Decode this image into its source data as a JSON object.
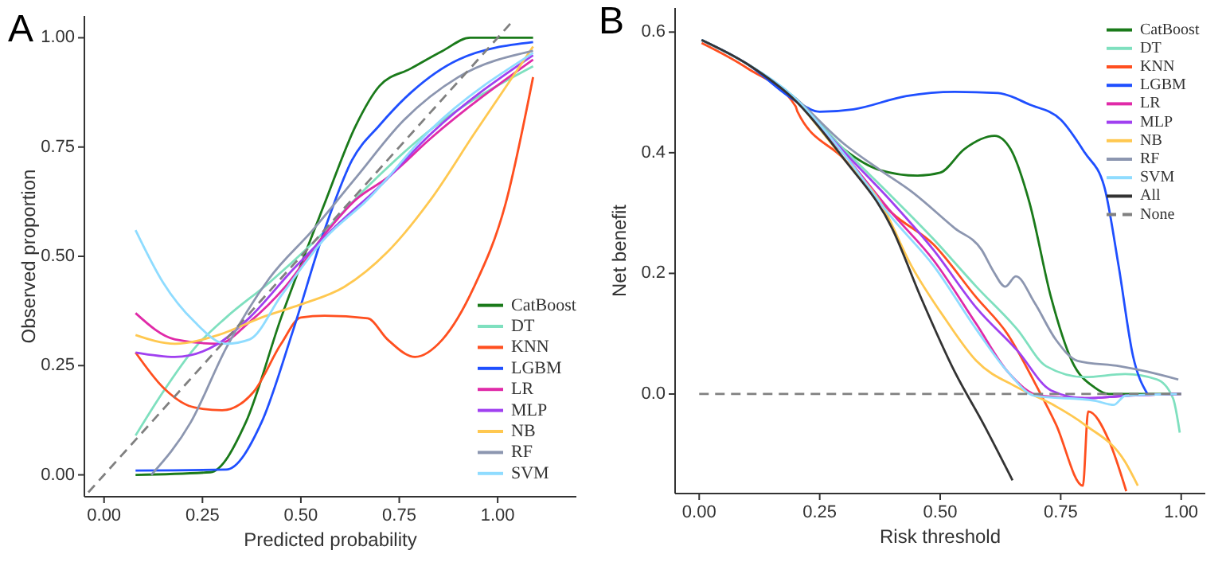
{
  "chart_data": [
    {
      "type": "line",
      "title": "A",
      "xlabel": "Predicted probability",
      "ylabel": "Observed proportion",
      "xlim": [
        -0.05,
        1.2
      ],
      "ylim": [
        -0.05,
        1.05
      ],
      "xticks": [
        {
          "value": 0,
          "label": "0.00"
        },
        {
          "value": 0.25,
          "label": "0.25"
        },
        {
          "value": 0.5,
          "label": "0.50"
        },
        {
          "value": 0.75,
          "label": "0.75"
        },
        {
          "value": 1,
          "label": "1.00"
        }
      ],
      "yticks": [
        {
          "value": 0,
          "label": "0.00"
        },
        {
          "value": 0.25,
          "label": "0.25"
        },
        {
          "value": 0.5,
          "label": "0.50"
        },
        {
          "value": 0.75,
          "label": "0.75"
        },
        {
          "value": 1,
          "label": "1.00"
        }
      ],
      "legend": "bottom right",
      "series": [
        {
          "name": "CatBoost",
          "color": "#1a7a1a",
          "x": [
            0.08,
            0.27,
            0.36,
            0.45,
            0.56,
            0.64,
            0.7,
            0.78,
            0.86,
            0.93,
            1.09
          ],
          "values": [
            0,
            0.006,
            0.12,
            0.36,
            0.62,
            0.8,
            0.89,
            0.93,
            0.97,
            1.0,
            1.0
          ]
        },
        {
          "name": "DT",
          "color": "#7fe0bf",
          "x": [
            0.08,
            0.15,
            0.23,
            0.31,
            0.42,
            0.53,
            0.67,
            0.83,
            1.09
          ],
          "values": [
            0.09,
            0.19,
            0.29,
            0.36,
            0.44,
            0.53,
            0.66,
            0.79,
            0.935
          ]
        },
        {
          "name": "KNN",
          "color": "#ff4f1f",
          "x": [
            0.08,
            0.15,
            0.23,
            0.3,
            0.38,
            0.45,
            0.5,
            0.56,
            0.67,
            0.72,
            0.79,
            0.86,
            0.94,
            1.02,
            1.09
          ],
          "values": [
            0.28,
            0.2,
            0.154,
            0.148,
            0.19,
            0.3,
            0.36,
            0.364,
            0.358,
            0.31,
            0.27,
            0.31,
            0.43,
            0.62,
            0.91
          ]
        },
        {
          "name": "LGBM",
          "color": "#1f4fff",
          "x": [
            0.08,
            0.31,
            0.4,
            0.48,
            0.56,
            0.63,
            0.7,
            0.78,
            0.9,
            1.09
          ],
          "values": [
            0.01,
            0.012,
            0.12,
            0.33,
            0.56,
            0.72,
            0.8,
            0.875,
            0.95,
            0.99
          ]
        },
        {
          "name": "LR",
          "color": "#e02aa8",
          "x": [
            0.08,
            0.18,
            0.29,
            0.37,
            0.46,
            0.56,
            0.64,
            0.72,
            0.83,
            1.09
          ],
          "values": [
            0.37,
            0.31,
            0.3,
            0.35,
            0.43,
            0.55,
            0.63,
            0.68,
            0.77,
            0.95
          ]
        },
        {
          "name": "MLP",
          "color": "#a040f0",
          "x": [
            0.08,
            0.18,
            0.29,
            0.37,
            0.48,
            0.59,
            0.7,
            0.83,
            1.09
          ],
          "values": [
            0.28,
            0.27,
            0.3,
            0.36,
            0.47,
            0.57,
            0.66,
            0.78,
            0.96
          ]
        },
        {
          "name": "NB",
          "color": "#ffc850",
          "x": [
            0.08,
            0.18,
            0.29,
            0.4,
            0.5,
            0.61,
            0.72,
            0.83,
            0.94,
            1.09
          ],
          "values": [
            0.32,
            0.3,
            0.32,
            0.36,
            0.39,
            0.43,
            0.51,
            0.63,
            0.78,
            0.98
          ]
        },
        {
          "name": "RF",
          "color": "#8c96b0",
          "x": [
            0.12,
            0.22,
            0.31,
            0.42,
            0.53,
            0.64,
            0.76,
            0.9,
            1.09
          ],
          "values": [
            0,
            0.12,
            0.29,
            0.45,
            0.56,
            0.68,
            0.81,
            0.91,
            0.97
          ]
        },
        {
          "name": "SVM",
          "color": "#8fdcff",
          "x": [
            0.08,
            0.15,
            0.23,
            0.31,
            0.37,
            0.45,
            0.56,
            0.67,
            0.83,
            1.09
          ],
          "values": [
            0.56,
            0.44,
            0.35,
            0.3,
            0.31,
            0.41,
            0.54,
            0.63,
            0.79,
            0.965
          ]
        },
        {
          "color": "#808080",
          "line_style": "dashed",
          "x": [
            -0.04,
            1.04
          ],
          "values": [
            -0.04,
            1.04
          ]
        }
      ]
    },
    {
      "type": "line",
      "title": "B",
      "xlabel": "Risk threshold",
      "ylabel": "Net benefit",
      "xlim": [
        -0.05,
        1.05
      ],
      "ylim": [
        -0.165,
        0.64
      ],
      "xticks": [
        {
          "value": 0,
          "label": "0.00"
        },
        {
          "value": 0.25,
          "label": "0.25"
        },
        {
          "value": 0.5,
          "label": "0.50"
        },
        {
          "value": 0.75,
          "label": "0.75"
        },
        {
          "value": 1,
          "label": "1.00"
        }
      ],
      "yticks": [
        {
          "value": 0,
          "label": "0.0"
        },
        {
          "value": 0.2,
          "label": "0.2"
        },
        {
          "value": 0.4,
          "label": "0.4"
        },
        {
          "value": 0.6,
          "label": "0.6"
        }
      ],
      "legend": "top right",
      "series": [
        {
          "name": "CatBoost",
          "color": "#1a7a1a",
          "x": [
            0.2,
            0.3,
            0.376,
            0.453,
            0.5,
            0.55,
            0.613,
            0.646,
            0.685,
            0.73,
            0.773,
            0.82,
            0.85,
            1.0
          ],
          "values": [
            0.49,
            0.406,
            0.371,
            0.362,
            0.367,
            0.406,
            0.428,
            0.406,
            0.318,
            0.16,
            0.055,
            0.011,
            0,
            0
          ]
        },
        {
          "name": "DT",
          "color": "#7fe0bf",
          "x": [
            0.005,
            0.1,
            0.2,
            0.3,
            0.4,
            0.486,
            0.575,
            0.66,
            0.72,
            0.8,
            0.884,
            0.95,
            0.983,
            0.997
          ],
          "values": [
            0.587,
            0.547,
            0.49,
            0.406,
            0.327,
            0.257,
            0.178,
            0.107,
            0.046,
            0.028,
            0.033,
            0.024,
            -0.007,
            -0.064
          ]
        },
        {
          "name": "KNN",
          "color": "#ff4f1f",
          "x": [
            0.005,
            0.1,
            0.2,
            0.204,
            0.3,
            0.4,
            0.486,
            0.575,
            0.64,
            0.696,
            0.74,
            0.796,
            0.807,
            0.85,
            0.886
          ],
          "values": [
            0.582,
            0.54,
            0.477,
            0.468,
            0.39,
            0.3,
            0.248,
            0.16,
            0.099,
            0.019,
            -0.05,
            -0.152,
            -0.029,
            -0.077,
            -0.161
          ]
        },
        {
          "name": "LGBM",
          "color": "#1f4fff",
          "x": [
            0.005,
            0.1,
            0.2,
            0.25,
            0.32,
            0.43,
            0.53,
            0.62,
            0.685,
            0.75,
            0.8,
            0.84,
            0.87,
            0.9,
            0.93
          ],
          "values": [
            0.587,
            0.547,
            0.486,
            0.468,
            0.472,
            0.494,
            0.501,
            0.499,
            0.48,
            0.455,
            0.4,
            0.345,
            0.213,
            0.063,
            0
          ]
        },
        {
          "name": "LR",
          "color": "#e02aa8",
          "x": [
            0.2,
            0.3,
            0.4,
            0.486,
            0.575,
            0.64,
            0.707,
            0.8,
            0.884,
            1.0
          ],
          "values": [
            0.49,
            0.398,
            0.3,
            0.222,
            0.116,
            0.037,
            -0.003,
            -0.007,
            -0.003,
            0
          ]
        },
        {
          "name": "MLP",
          "color": "#a040f0",
          "x": [
            0.2,
            0.3,
            0.4,
            0.486,
            0.575,
            0.66,
            0.73,
            0.8,
            0.884,
            1.0
          ],
          "values": [
            0.49,
            0.402,
            0.318,
            0.239,
            0.143,
            0.072,
            0.006,
            -0.007,
            -0.003,
            0
          ]
        },
        {
          "name": "NB",
          "color": "#ffc850",
          "x": [
            0.2,
            0.3,
            0.376,
            0.44,
            0.51,
            0.575,
            0.66,
            0.73,
            0.8,
            0.884,
            0.91
          ],
          "values": [
            0.49,
            0.39,
            0.318,
            0.213,
            0.125,
            0.055,
            0.011,
            -0.016,
            -0.051,
            -0.113,
            -0.152
          ]
        },
        {
          "name": "RF",
          "color": "#8c96b0",
          "x": [
            0.005,
            0.1,
            0.2,
            0.3,
            0.376,
            0.44,
            0.53,
            0.586,
            0.61,
            0.635,
            0.657,
            0.696,
            0.74,
            0.785,
            0.873,
            0.93,
            0.994
          ],
          "values": [
            0.587,
            0.547,
            0.49,
            0.415,
            0.371,
            0.336,
            0.275,
            0.239,
            0.204,
            0.178,
            0.195,
            0.151,
            0.09,
            0.055,
            0.046,
            0.037,
            0.024
          ]
        },
        {
          "name": "SVM",
          "color": "#8fdcff",
          "x": [
            0.005,
            0.1,
            0.2,
            0.3,
            0.4,
            0.486,
            0.575,
            0.64,
            0.696,
            0.82,
            0.86,
            0.884,
            1.0
          ],
          "values": [
            0.587,
            0.547,
            0.49,
            0.398,
            0.292,
            0.213,
            0.107,
            0.037,
            -0.003,
            -0.011,
            -0.018,
            -0.003,
            0
          ]
        },
        {
          "name": "All",
          "color": "#333333",
          "x": [
            0.005,
            0.1,
            0.2,
            0.3,
            0.4,
            0.46,
            0.53,
            0.59,
            0.65
          ],
          "values": [
            0.587,
            0.547,
            0.486,
            0.39,
            0.275,
            0.16,
            0.037,
            -0.05,
            -0.143
          ]
        },
        {
          "name": "None",
          "color": "#808080",
          "line_style": "dashed",
          "x": [
            0,
            1.0
          ],
          "values": [
            0,
            0
          ]
        }
      ]
    }
  ]
}
